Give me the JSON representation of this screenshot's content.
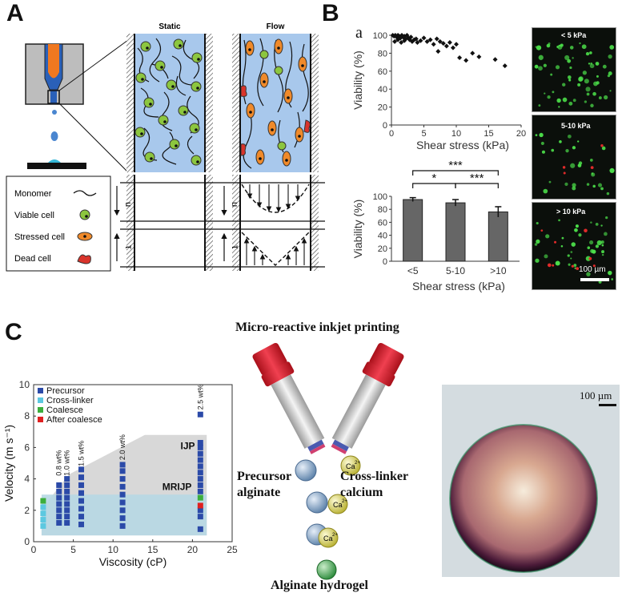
{
  "panel_letters": {
    "a": "A",
    "b": "B",
    "c": "C"
  },
  "panel_a": {
    "static_label": "Static",
    "flow_label": "Flow",
    "legend": {
      "monomer": "Monomer",
      "viable": "Viable cell",
      "stressed": "Stressed cell",
      "dead": "Dead cell"
    },
    "symbols": {
      "u": "u",
      "tau": "τ"
    },
    "colors": {
      "medium": "#a8c8ec",
      "viable_cell": "#8cc63f",
      "stressed_cell": "#f08a2a",
      "dead_cell": "#d9342b",
      "nozzle": "#f07820"
    }
  },
  "panel_b": {
    "sub_label": "a",
    "micro_labels": [
      "< 5 kPa",
      "5-10 kPa",
      "> 10 kPa"
    ],
    "scale_bar": "100 µm"
  },
  "panel_c": {
    "title": "Micro-reactive inkjet printing",
    "precursor_label_1": "Precursor",
    "precursor_label_2": "alginate",
    "crosslinker_label_1": "Cross-linker",
    "crosslinker_label_2": "calcium",
    "hydrogel_label": "Alginate hydrogel",
    "ion": "Ca",
    "ion_charge": "2+",
    "scale_bar": "100 µm"
  },
  "chart_data": [
    {
      "type": "scatter",
      "xlabel": "Shear stress (kPa)",
      "ylabel": "Viability (%)",
      "xlim": [
        0,
        20
      ],
      "ylim": [
        0,
        100
      ],
      "xticks": [
        "0",
        "5",
        "10",
        "15",
        "20"
      ],
      "yticks": [
        "0",
        "20",
        "40",
        "60",
        "80",
        "100"
      ],
      "points": [
        [
          0.2,
          100
        ],
        [
          0.4,
          99
        ],
        [
          0.6,
          100
        ],
        [
          0.8,
          98
        ],
        [
          1.0,
          100
        ],
        [
          1.2,
          99
        ],
        [
          1.4,
          97
        ],
        [
          1.6,
          100
        ],
        [
          1.8,
          98
        ],
        [
          2.0,
          99
        ],
        [
          2.2,
          96
        ],
        [
          2.4,
          100
        ],
        [
          2.6,
          97
        ],
        [
          0.5,
          93
        ],
        [
          1.0,
          95
        ],
        [
          1.5,
          92
        ],
        [
          2.0,
          94
        ],
        [
          2.8,
          95
        ],
        [
          3.0,
          98
        ],
        [
          3.2,
          93
        ],
        [
          3.5,
          95
        ],
        [
          3.8,
          96
        ],
        [
          4.0,
          92
        ],
        [
          4.5,
          94
        ],
        [
          5.0,
          97
        ],
        [
          5.5,
          93
        ],
        [
          6.0,
          95
        ],
        [
          6.5,
          90
        ],
        [
          7.0,
          96
        ],
        [
          7.2,
          82
        ],
        [
          7.5,
          93
        ],
        [
          8.0,
          91
        ],
        [
          8.5,
          88
        ],
        [
          9.0,
          92
        ],
        [
          9.5,
          86
        ],
        [
          10.0,
          90
        ],
        [
          10.5,
          75
        ],
        [
          11.5,
          72
        ],
        [
          12.5,
          80
        ],
        [
          13.5,
          76
        ],
        [
          16.0,
          73
        ],
        [
          17.5,
          66
        ]
      ]
    },
    {
      "type": "bar",
      "xlabel": "Shear stress (kPa)",
      "ylabel": "Viability (%)",
      "categories": [
        "<5",
        "5-10",
        ">10"
      ],
      "values": [
        95,
        90,
        76
      ],
      "errors": [
        3,
        5,
        8
      ],
      "ylim": [
        0,
        100
      ],
      "yticks": [
        "0",
        "20",
        "40",
        "60",
        "80",
        "100"
      ],
      "significance": [
        {
          "from": "<5",
          "to": "5-10",
          "label": "*"
        },
        {
          "from": "5-10",
          "to": ">10",
          "label": "***"
        },
        {
          "from": "<5",
          "to": ">10",
          "label": "***"
        }
      ]
    },
    {
      "type": "scatter",
      "xlabel": "Viscosity (cP)",
      "ylabel": "Velocity (m s⁻¹)",
      "xlim": [
        0,
        25
      ],
      "ylim": [
        0,
        10
      ],
      "xticks": [
        "0",
        "5",
        "10",
        "15",
        "20",
        "25"
      ],
      "yticks": [
        "0",
        "2",
        "4",
        "6",
        "8",
        "10"
      ],
      "legend": [
        {
          "name": "Precursor",
          "color": "#2b4aa8"
        },
        {
          "name": "Cross-linker",
          "color": "#5cc8e0"
        },
        {
          "name": "Coalesce",
          "color": "#3cae3c"
        },
        {
          "name": "After coalesce",
          "color": "#e02020"
        }
      ],
      "region_labels": [
        "IJP",
        "MRIJP"
      ],
      "concentration_labels": [
        {
          "text": "0.8 wt%",
          "x": 3.2
        },
        {
          "text": "1.0 wt%",
          "x": 4.2
        },
        {
          "text": "1.5 wt%",
          "x": 6.0
        },
        {
          "text": "2.0 wt%",
          "x": 11.2
        },
        {
          "text": "2.5 wt%",
          "x": 21.0
        }
      ],
      "series": [
        {
          "name": "Precursor",
          "x": 3.2,
          "y": [
            1.2,
            1.6,
            2.0,
            2.4,
            2.8,
            3.2,
            3.6
          ]
        },
        {
          "name": "Precursor",
          "x": 4.2,
          "y": [
            1.2,
            1.6,
            2.0,
            2.4,
            2.8,
            3.2,
            3.6,
            4.0
          ]
        },
        {
          "name": "Precursor",
          "x": 6.0,
          "y": [
            1.1,
            1.6,
            2.1,
            2.6,
            3.1,
            3.6,
            4.1,
            4.6
          ]
        },
        {
          "name": "Precursor",
          "x": 11.2,
          "y": [
            1.0,
            1.5,
            2.0,
            2.5,
            3.0,
            3.5,
            4.0,
            4.5,
            4.9
          ]
        },
        {
          "name": "Precursor",
          "x": 21.0,
          "y": [
            0.8,
            1.6,
            2.0,
            3.2,
            3.6,
            4.0,
            4.4,
            4.8,
            5.2,
            5.6,
            6.0,
            6.3,
            8.1
          ]
        },
        {
          "name": "Cross-linker",
          "x": 1.2,
          "y": [
            1.0,
            1.4,
            1.8,
            2.2
          ]
        },
        {
          "name": "Coalesce",
          "x": 1.2,
          "y": [
            2.6
          ]
        },
        {
          "name": "Coalesce",
          "x": 21.0,
          "y": [
            2.8
          ]
        },
        {
          "name": "After coalesce",
          "x": 21.0,
          "y": [
            2.3
          ]
        }
      ]
    }
  ]
}
